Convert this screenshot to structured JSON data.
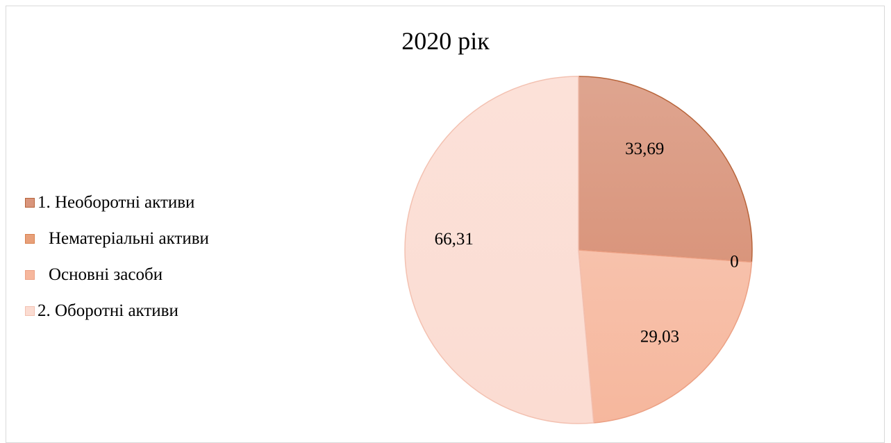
{
  "chart_data": {
    "type": "pie",
    "title": "2020 рік",
    "categories": [
      "1. Необоротні активи",
      "Нематеріальні активи",
      "Основні засоби",
      "2. Оборотні активи"
    ],
    "values": [
      33.69,
      0,
      29.03,
      66.31
    ],
    "value_labels": [
      "33,69",
      "0",
      "29,03",
      "66,31"
    ],
    "colors": [
      "#d9957c",
      "#e8a07a",
      "#f6b79d",
      "#fbdcd2"
    ],
    "legend_position": "left"
  }
}
